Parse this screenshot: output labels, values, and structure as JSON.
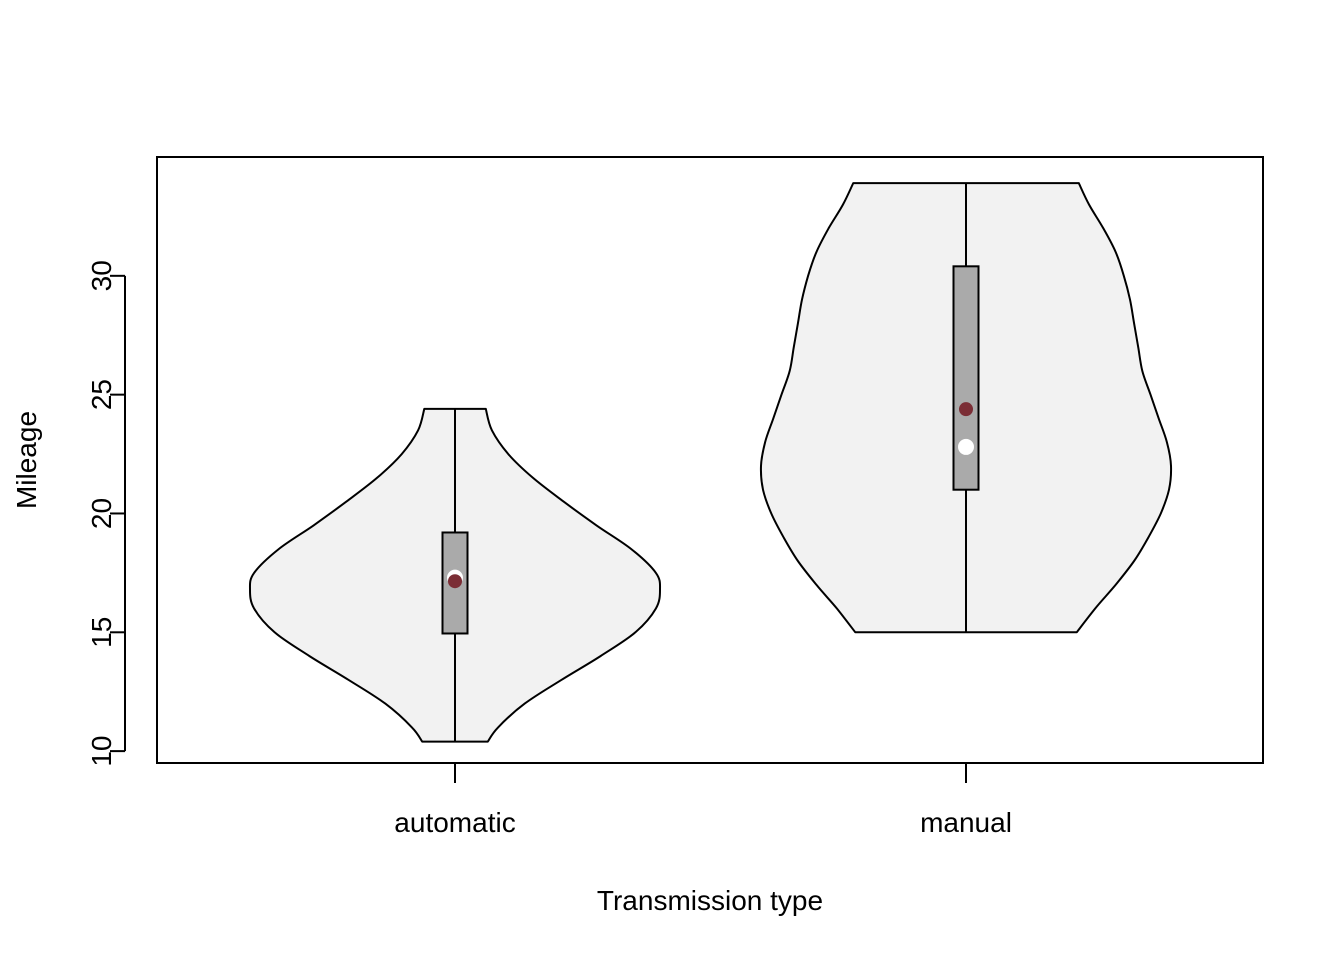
{
  "chart_data": {
    "type": "violin",
    "xlabel": "Transmission type",
    "ylabel": "Mileage",
    "categories": [
      "automatic",
      "manual"
    ],
    "ylim": [
      9.5,
      35.0
    ],
    "yticks": [
      10,
      15,
      20,
      25,
      30
    ],
    "violins": [
      {
        "category": "automatic",
        "min": 10.4,
        "max": 24.4,
        "q1": 14.95,
        "median": 17.3,
        "q3": 19.2,
        "mean": 17.15,
        "density_profile": [
          [
            10.4,
            0.16
          ],
          [
            11.0,
            0.21
          ],
          [
            12.0,
            0.34
          ],
          [
            13.0,
            0.52
          ],
          [
            14.0,
            0.71
          ],
          [
            15.0,
            0.88
          ],
          [
            16.0,
            0.98
          ],
          [
            16.8,
            1.0
          ],
          [
            17.5,
            0.98
          ],
          [
            18.5,
            0.86
          ],
          [
            19.5,
            0.69
          ],
          [
            20.5,
            0.53
          ],
          [
            21.5,
            0.38
          ],
          [
            22.5,
            0.26
          ],
          [
            23.5,
            0.18
          ],
          [
            24.4,
            0.15
          ]
        ]
      },
      {
        "category": "manual",
        "min": 15.0,
        "max": 33.9,
        "q1": 21.0,
        "median": 22.8,
        "q3": 30.4,
        "mean": 24.39,
        "density_profile": [
          [
            15.0,
            0.54
          ],
          [
            16.0,
            0.63
          ],
          [
            17.0,
            0.73
          ],
          [
            18.0,
            0.82
          ],
          [
            19.0,
            0.89
          ],
          [
            20.0,
            0.95
          ],
          [
            21.0,
            0.99
          ],
          [
            22.0,
            1.0
          ],
          [
            23.0,
            0.98
          ],
          [
            24.0,
            0.94
          ],
          [
            25.0,
            0.9
          ],
          [
            26.0,
            0.86
          ],
          [
            27.0,
            0.84
          ],
          [
            28.0,
            0.82
          ],
          [
            29.0,
            0.8
          ],
          [
            30.0,
            0.77
          ],
          [
            31.0,
            0.73
          ],
          [
            32.0,
            0.67
          ],
          [
            33.0,
            0.6
          ],
          [
            33.9,
            0.55
          ]
        ]
      }
    ],
    "colors": {
      "violin_fill": "#f2f2f2",
      "box_fill": "#aaaaaa",
      "median_point": "#ffffff",
      "mean_point": "#7b2d35",
      "line": "#000000"
    }
  }
}
